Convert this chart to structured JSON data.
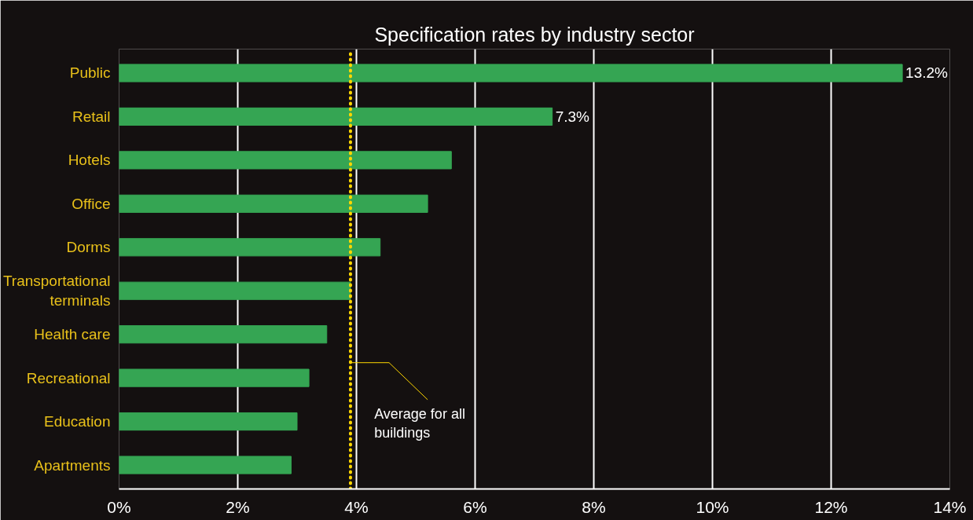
{
  "chart_data": {
    "type": "bar",
    "orientation": "horizontal",
    "title": "Specification rates by industry sector",
    "categories": [
      "Public",
      "Retail",
      "Hotels",
      "Office",
      "Dorms",
      "Transportational\nterminals",
      "Health care",
      "Recreational",
      "Education",
      "Apartments"
    ],
    "values": [
      13.2,
      7.3,
      5.6,
      5.2,
      4.4,
      3.9,
      3.5,
      3.2,
      3.0,
      2.9
    ],
    "value_labels": [
      "13.2%",
      "7.3%",
      null,
      null,
      null,
      null,
      null,
      null,
      null,
      null
    ],
    "color": "#35a553",
    "xlim": [
      0,
      14
    ],
    "xticks": [
      {
        "value": 0,
        "label": "0%"
      },
      {
        "value": 2,
        "label": "2%"
      },
      {
        "value": 4,
        "label": "4%"
      },
      {
        "value": 6,
        "label": "6%"
      },
      {
        "value": 8,
        "label": "8%"
      },
      {
        "value": 10,
        "label": "10%"
      },
      {
        "value": 12,
        "label": "12%"
      },
      {
        "value": 14,
        "label": "14%"
      }
    ],
    "grid": "x",
    "ref_lines": [
      {
        "axis": "x",
        "value": 3.9,
        "label": "Average for all buildings",
        "color": "#ffd700",
        "line_style": "dotted"
      }
    ]
  }
}
